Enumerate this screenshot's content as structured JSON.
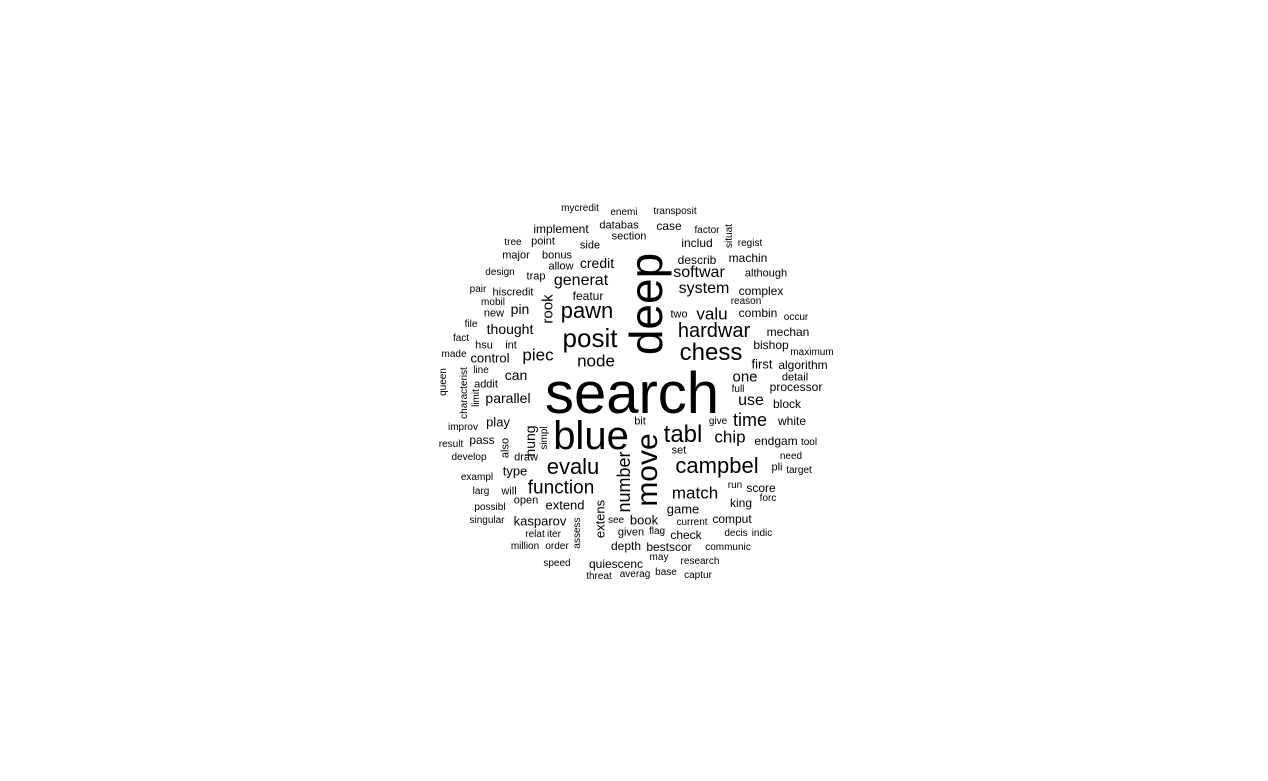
{
  "color": "#000000",
  "words": [
    {
      "text": "search"
    },
    {
      "text": "deep"
    },
    {
      "text": "blue"
    },
    {
      "text": "move"
    },
    {
      "text": "posit"
    },
    {
      "text": "tabl"
    },
    {
      "text": "campbel"
    },
    {
      "text": "chess"
    },
    {
      "text": "pawn"
    },
    {
      "text": "evalu"
    },
    {
      "text": "hardwar"
    },
    {
      "text": "function"
    },
    {
      "text": "number"
    },
    {
      "text": "match"
    },
    {
      "text": "chip"
    },
    {
      "text": "time"
    },
    {
      "text": "piec"
    },
    {
      "text": "node"
    },
    {
      "text": "softwar"
    },
    {
      "text": "system"
    },
    {
      "text": "generat"
    },
    {
      "text": "valu"
    },
    {
      "text": "use"
    },
    {
      "text": "one"
    },
    {
      "text": "rook"
    },
    {
      "text": "credit"
    },
    {
      "text": "parallel"
    },
    {
      "text": "thought"
    },
    {
      "text": "extens"
    },
    {
      "text": "hung"
    },
    {
      "text": "kasparov"
    },
    {
      "text": "extend"
    },
    {
      "text": "book"
    },
    {
      "text": "game"
    },
    {
      "text": "king"
    },
    {
      "text": "comput"
    },
    {
      "text": "depth"
    },
    {
      "text": "bestscor"
    },
    {
      "text": "quiescenc"
    },
    {
      "text": "can"
    },
    {
      "text": "control"
    },
    {
      "text": "play"
    },
    {
      "text": "pin"
    },
    {
      "text": "type"
    },
    {
      "text": "featur"
    },
    {
      "text": "implement"
    },
    {
      "text": "databas"
    },
    {
      "text": "case"
    },
    {
      "text": "section"
    },
    {
      "text": "includ"
    },
    {
      "text": "describ"
    },
    {
      "text": "machin"
    },
    {
      "text": "complex"
    },
    {
      "text": "combin"
    },
    {
      "text": "mechan"
    },
    {
      "text": "bishop"
    },
    {
      "text": "first"
    },
    {
      "text": "algorithm"
    },
    {
      "text": "detail"
    },
    {
      "text": "processor"
    },
    {
      "text": "block"
    },
    {
      "text": "white"
    },
    {
      "text": "endgam"
    },
    {
      "text": "score"
    },
    {
      "text": "check"
    },
    {
      "text": "pass"
    },
    {
      "text": "hiscredit"
    },
    {
      "text": "major"
    },
    {
      "text": "bonus"
    },
    {
      "text": "point"
    },
    {
      "text": "side"
    },
    {
      "text": "trap"
    },
    {
      "text": "allow"
    },
    {
      "text": "new"
    },
    {
      "text": "hsu"
    },
    {
      "text": "int"
    },
    {
      "text": "addit"
    },
    {
      "text": "line"
    },
    {
      "text": "open"
    },
    {
      "text": "will"
    },
    {
      "text": "draw"
    },
    {
      "text": "also"
    },
    {
      "text": "simpl"
    },
    {
      "text": "see"
    },
    {
      "text": "given"
    },
    {
      "text": "flag"
    },
    {
      "text": "current"
    },
    {
      "text": "set"
    },
    {
      "text": "bit"
    },
    {
      "text": "give"
    },
    {
      "text": "full"
    },
    {
      "text": "two"
    },
    {
      "text": "factor"
    },
    {
      "text": "regist"
    },
    {
      "text": "situat"
    },
    {
      "text": "although"
    },
    {
      "text": "reason"
    },
    {
      "text": "occur"
    },
    {
      "text": "maximum"
    },
    {
      "text": "need"
    },
    {
      "text": "target"
    },
    {
      "text": "pli"
    },
    {
      "text": "run"
    },
    {
      "text": "forc"
    },
    {
      "text": "decis"
    },
    {
      "text": "indic"
    },
    {
      "text": "communic"
    },
    {
      "text": "research"
    },
    {
      "text": "captur"
    },
    {
      "text": "base"
    },
    {
      "text": "averag"
    },
    {
      "text": "threat"
    },
    {
      "text": "may"
    },
    {
      "text": "speed"
    },
    {
      "text": "order"
    },
    {
      "text": "million"
    },
    {
      "text": "relat"
    },
    {
      "text": "iter"
    },
    {
      "text": "assess"
    },
    {
      "text": "singular"
    },
    {
      "text": "possibl"
    },
    {
      "text": "larg"
    },
    {
      "text": "exampl"
    },
    {
      "text": "develop"
    },
    {
      "text": "result"
    },
    {
      "text": "improv"
    },
    {
      "text": "queen"
    },
    {
      "text": "characterist"
    },
    {
      "text": "limit"
    },
    {
      "text": "made"
    },
    {
      "text": "fact"
    },
    {
      "text": "file"
    },
    {
      "text": "mobil"
    },
    {
      "text": "pair"
    },
    {
      "text": "design"
    },
    {
      "text": "tree"
    },
    {
      "text": "mycredit"
    },
    {
      "text": "enemi"
    },
    {
      "text": "transposit"
    },
    {
      "text": "tool"
    }
  ]
}
